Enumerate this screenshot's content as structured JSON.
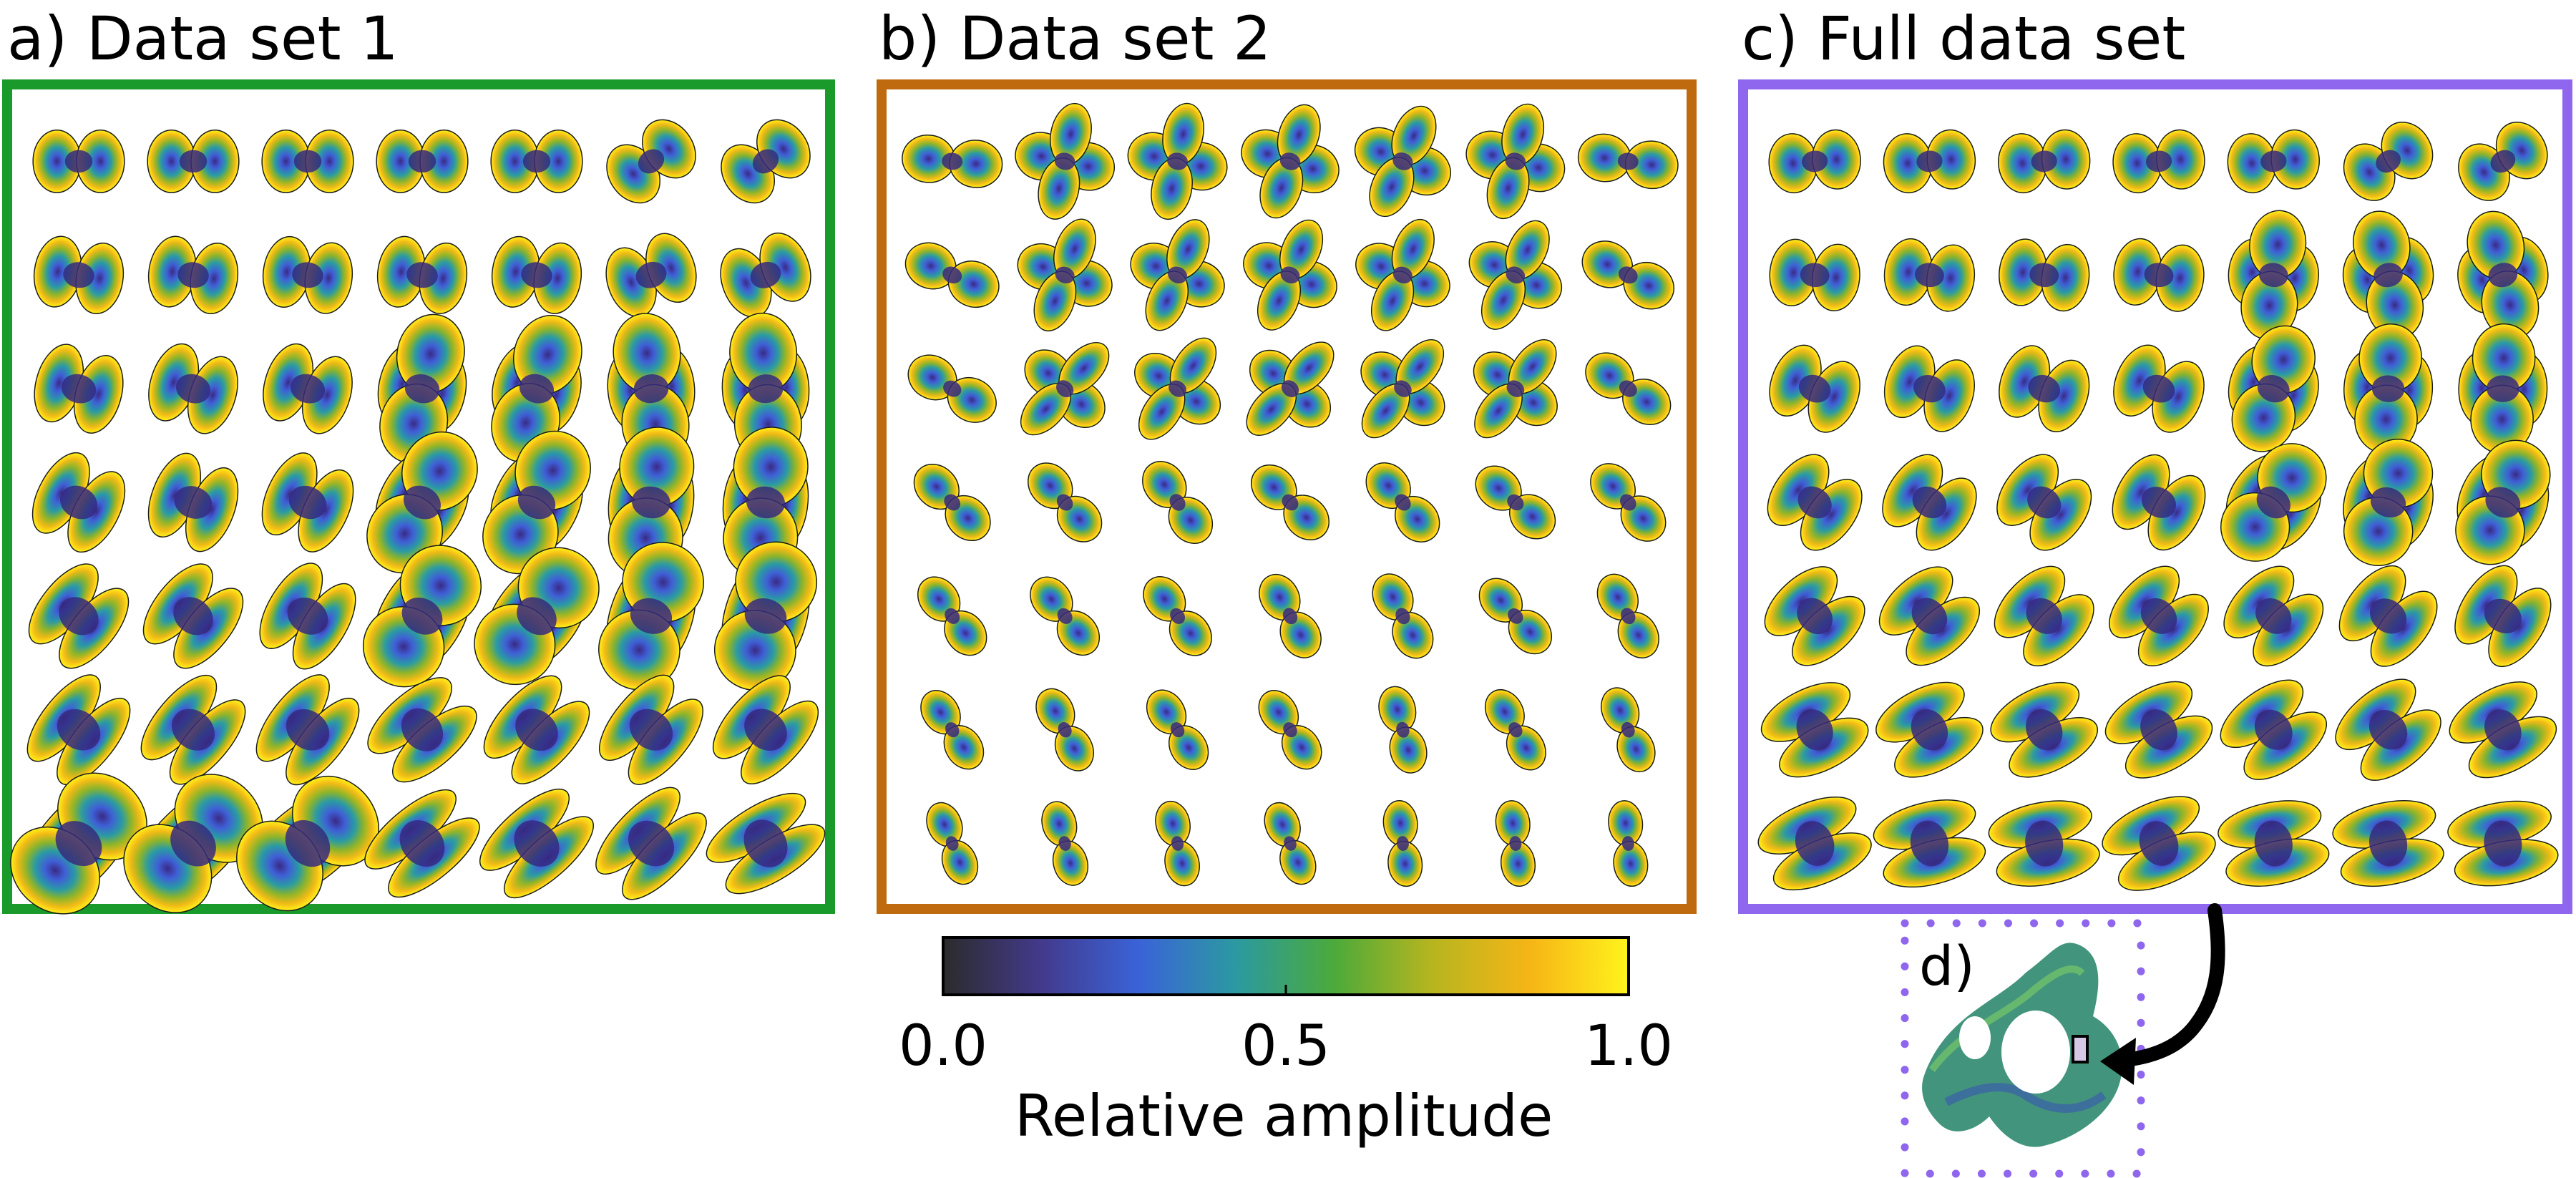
{
  "panels": [
    {
      "label": "a) Data set 1",
      "frame_color": "#1a9a2a",
      "style": "ds1"
    },
    {
      "label": "b) Data set 2",
      "frame_color": "#c06a10",
      "style": "ds2"
    },
    {
      "label": "c) Full data set",
      "frame_color": "#8f67ee",
      "style": "full"
    }
  ],
  "inset": {
    "label": "d)",
    "border_color": "#8f67ee"
  },
  "colorbar": {
    "stops": [
      "#2b2b2b",
      "#433a8c",
      "#3a63d8",
      "#2b9aa0",
      "#4caa3a",
      "#b7b51f",
      "#f6b516",
      "#fff31c"
    ],
    "ticks": [
      "0.0",
      "0.5",
      "1.0"
    ],
    "tick_values": [
      0,
      0.5,
      1
    ],
    "label": "Relative amplitude"
  }
}
